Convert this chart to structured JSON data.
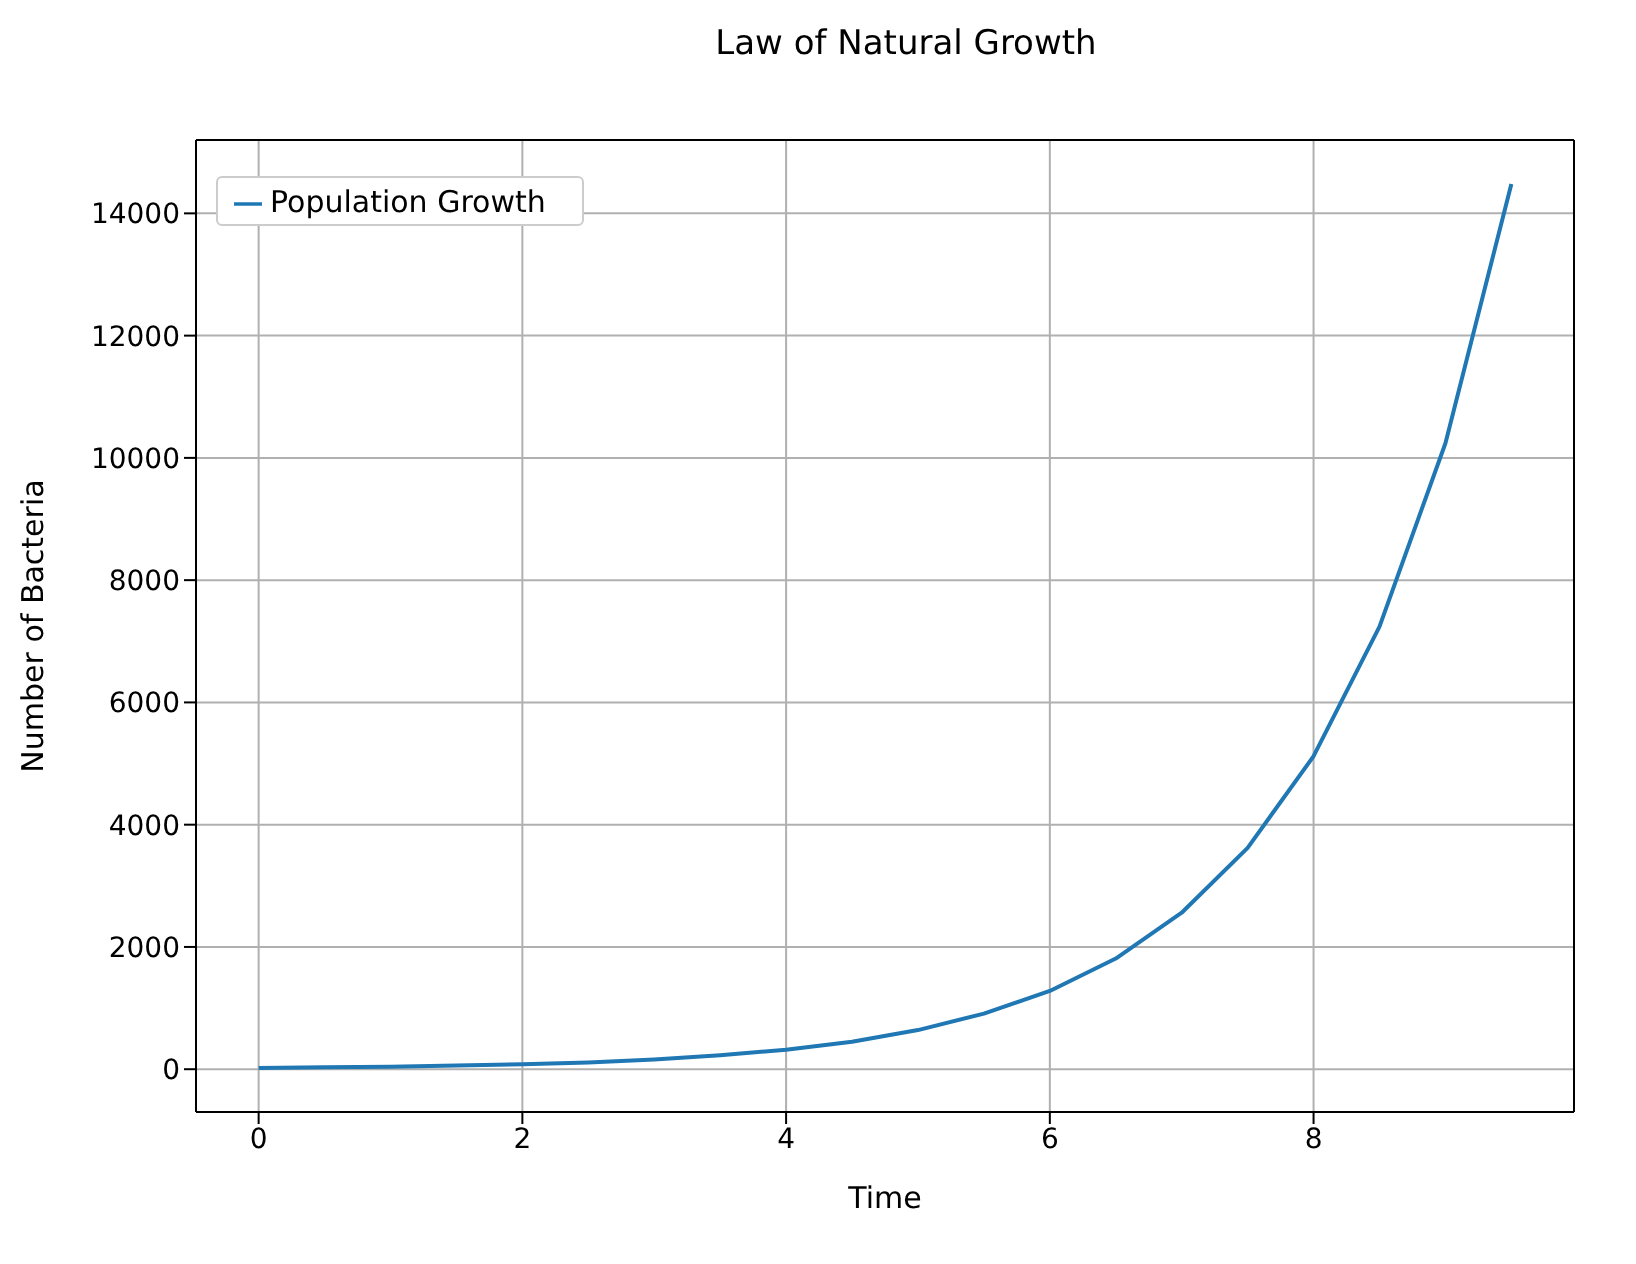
{
  "chart_data": {
    "type": "line",
    "title": "Law of Natural Growth",
    "xlabel": "Time",
    "ylabel": "Number of Bacteria",
    "x": [
      0,
      0.5,
      1,
      1.5,
      2,
      2.5,
      3,
      3.5,
      4,
      4.5,
      5,
      5.5,
      6,
      6.5,
      7,
      7.5,
      8,
      8.5,
      9,
      9.5
    ],
    "series": [
      {
        "name": "Population Growth",
        "color": "#1f77b4",
        "values": [
          20,
          30,
          40,
          60,
          80,
          110,
          160,
          230,
          320,
          450,
          640,
          910,
          1280,
          1810,
          2560,
          3620,
          5120,
          7240,
          10240,
          14480
        ]
      }
    ],
    "xlim": [
      -0.475,
      9.975
    ],
    "xticks": [
      0,
      2,
      4,
      6,
      8
    ],
    "ylim": [
      -700,
      15200
    ],
    "yticks": [
      0,
      2000,
      4000,
      6000,
      8000,
      10000,
      12000,
      14000
    ],
    "grid": true,
    "legend": "top left",
    "marker": "none",
    "line_style": "solid"
  }
}
